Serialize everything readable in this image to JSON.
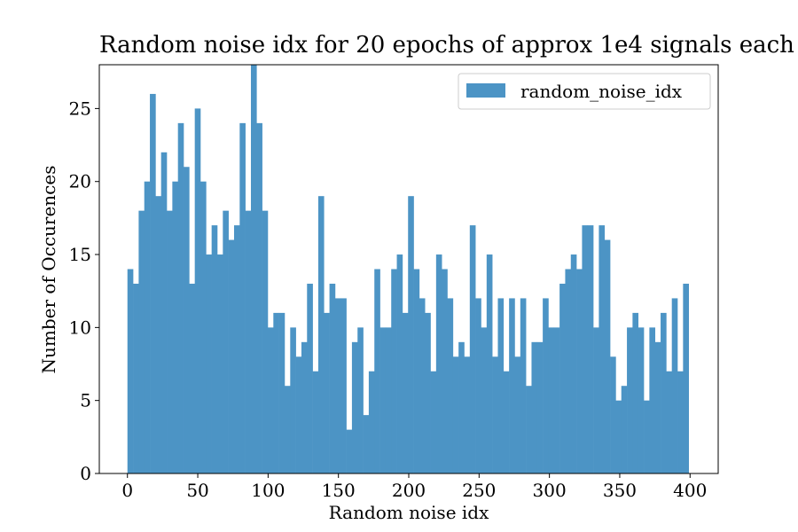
{
  "chart_data": {
    "type": "bar",
    "title": "Random noise idx for 20 epochs of approx 1e4 signals each",
    "xlabel": "Random noise idx",
    "ylabel": "Number of Occurences",
    "xlim": [
      -20,
      420
    ],
    "ylim": [
      0,
      28
    ],
    "xticks": [
      0,
      50,
      100,
      150,
      200,
      250,
      300,
      350,
      400
    ],
    "yticks": [
      0,
      5,
      10,
      15,
      20,
      25
    ],
    "bin_start": 0,
    "bin_width": 3.99,
    "series": [
      {
        "name": "random_noise_idx",
        "color": "#4c94c5",
        "values": [
          14,
          13,
          18,
          20,
          26,
          19,
          22,
          18,
          20,
          24,
          21,
          13,
          25,
          20,
          15,
          17,
          15,
          18,
          16,
          17,
          24,
          18,
          28,
          24,
          18,
          10,
          11,
          11,
          6,
          10,
          8,
          9,
          13,
          7,
          19,
          11,
          13,
          12,
          12,
          3,
          9,
          10,
          4,
          7,
          14,
          10,
          10,
          14,
          15,
          11,
          19,
          14,
          12,
          11,
          7,
          15,
          14,
          12,
          8,
          9,
          8,
          17,
          12,
          10,
          15,
          8,
          12,
          7,
          12,
          8,
          12,
          6,
          9,
          9,
          12,
          10,
          10,
          13,
          14,
          15,
          14,
          17,
          17,
          10,
          17,
          16,
          8,
          5,
          6,
          10,
          11,
          10,
          5,
          10,
          9,
          11,
          7,
          12,
          7,
          13
        ]
      }
    ],
    "legend": {
      "position": "top-right",
      "label": "random_noise_idx"
    },
    "grid": false
  }
}
